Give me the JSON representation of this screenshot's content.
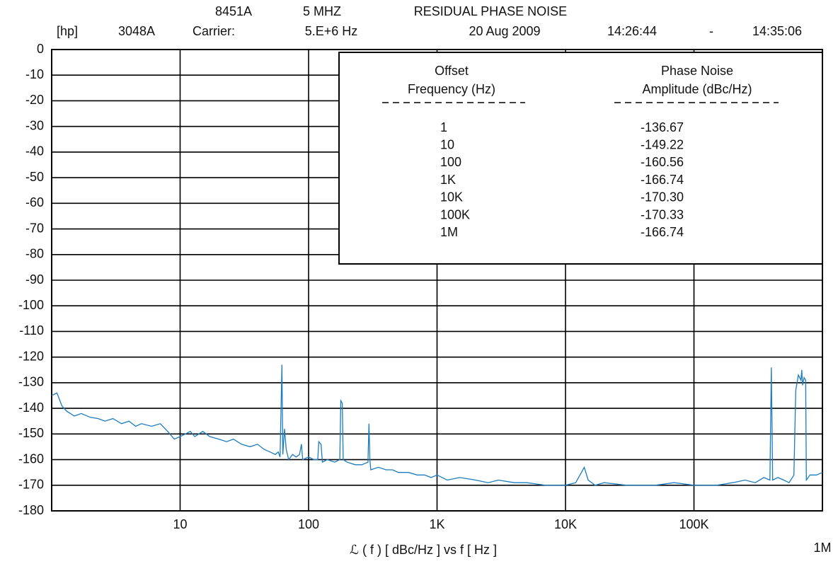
{
  "chart_data": {
    "type": "line",
    "header": {
      "row1": [
        "8451A",
        "5 MHZ",
        "RESIDUAL  PHASE NOISE"
      ],
      "row2": [
        "[hp]",
        "3048A",
        "Carrier:",
        "5.E+6 Hz",
        "20 Aug 2009",
        "14:26:44",
        "-",
        "14:35:06"
      ]
    },
    "x_label": "ℒ ( f )    [ dBc/Hz ]     vs     f [ Hz ]",
    "log_x": true,
    "grid": true,
    "xlim": [
      1,
      1000000
    ],
    "ylim": [
      -180,
      0
    ],
    "xticks": [
      10,
      100,
      {
        "value": 1000,
        "label": "1K"
      },
      {
        "value": 10000,
        "label": "10K"
      },
      {
        "value": 100000,
        "label": "100K"
      },
      {
        "value": 1000000,
        "label": "1M"
      }
    ],
    "yticks": [
      0,
      -10,
      -20,
      -30,
      -40,
      -50,
      -60,
      -70,
      -80,
      -90,
      -100,
      -110,
      -120,
      -130,
      -140,
      -150,
      -160,
      -170,
      -180
    ],
    "series": [
      {
        "color": "#1b7cc0",
        "x": [
          1,
          1.1,
          1.2,
          1.3,
          1.5,
          1.7,
          2,
          2.3,
          2.6,
          3,
          3.5,
          4,
          4.5,
          5,
          6,
          7,
          8,
          9,
          10,
          11,
          12,
          13,
          15,
          17,
          20,
          23,
          26,
          30,
          35,
          40,
          45,
          50,
          55,
          58,
          60,
          62,
          63,
          65,
          67,
          70,
          75,
          80,
          85,
          88,
          90,
          100,
          110,
          118,
          120,
          125,
          128,
          140,
          160,
          175,
          178,
          183,
          186,
          200,
          230,
          260,
          290,
          295,
          300,
          305,
          350,
          400,
          450,
          500,
          600,
          700,
          800,
          900,
          1000,
          1200,
          1500,
          2000,
          2500,
          3000,
          4000,
          5000,
          7000,
          10000,
          12000,
          14000,
          15000,
          17000,
          20000,
          30000,
          50000,
          70000,
          100000,
          150000,
          200000,
          250000,
          300000,
          350000,
          390000,
          400000,
          410000,
          450000,
          500000,
          550000,
          600000,
          620000,
          650000,
          680000,
          690000,
          700000,
          720000,
          740000,
          750000,
          800000,
          900000,
          1000000
        ],
        "values": [
          -135,
          -134,
          -139,
          -141,
          -143,
          -142,
          -143.5,
          -144,
          -145,
          -144,
          -146,
          -145,
          -147,
          -146,
          -147,
          -146,
          -149,
          -152,
          -151,
          -150,
          -149,
          -151,
          -149,
          -151,
          -152,
          -153,
          -152,
          -154,
          -155,
          -154,
          -156,
          -157,
          -158,
          -157,
          -159,
          -123,
          -158,
          -148,
          -156,
          -160,
          -158,
          -159,
          -158,
          -154,
          -160,
          -159,
          -160,
          -160,
          -153,
          -154,
          -161,
          -160,
          -161,
          -160,
          -137,
          -138,
          -160,
          -161,
          -162,
          -162,
          -161,
          -146,
          -160,
          -164,
          -163,
          -164,
          -164,
          -165,
          -165,
          -166,
          -166,
          -167,
          -166,
          -168,
          -167,
          -168,
          -169,
          -168,
          -169,
          -169,
          -170,
          -170,
          -169,
          -163,
          -168,
          -170,
          -169,
          -170,
          -170,
          -169,
          -170,
          -170,
          -169,
          -168,
          -169,
          -167,
          -168,
          -124,
          -168,
          -167,
          -168,
          -169,
          -166,
          -133,
          -127,
          -129,
          -125,
          -131,
          -128,
          -129,
          -168,
          -166,
          -166,
          -165
        ]
      }
    ],
    "table": {
      "headers": [
        [
          "Offset",
          "Frequency  (Hz)"
        ],
        [
          "Phase Noise",
          "Amplitude (dBc/Hz)"
        ]
      ],
      "rows": [
        [
          "1",
          "-136.67"
        ],
        [
          "10",
          "-149.22"
        ],
        [
          "100",
          "-160.56"
        ],
        [
          "1K",
          "-166.74"
        ],
        [
          "10K",
          "-170.30"
        ],
        [
          "100K",
          "-170.33"
        ],
        [
          "1M",
          "-166.74"
        ]
      ]
    }
  }
}
